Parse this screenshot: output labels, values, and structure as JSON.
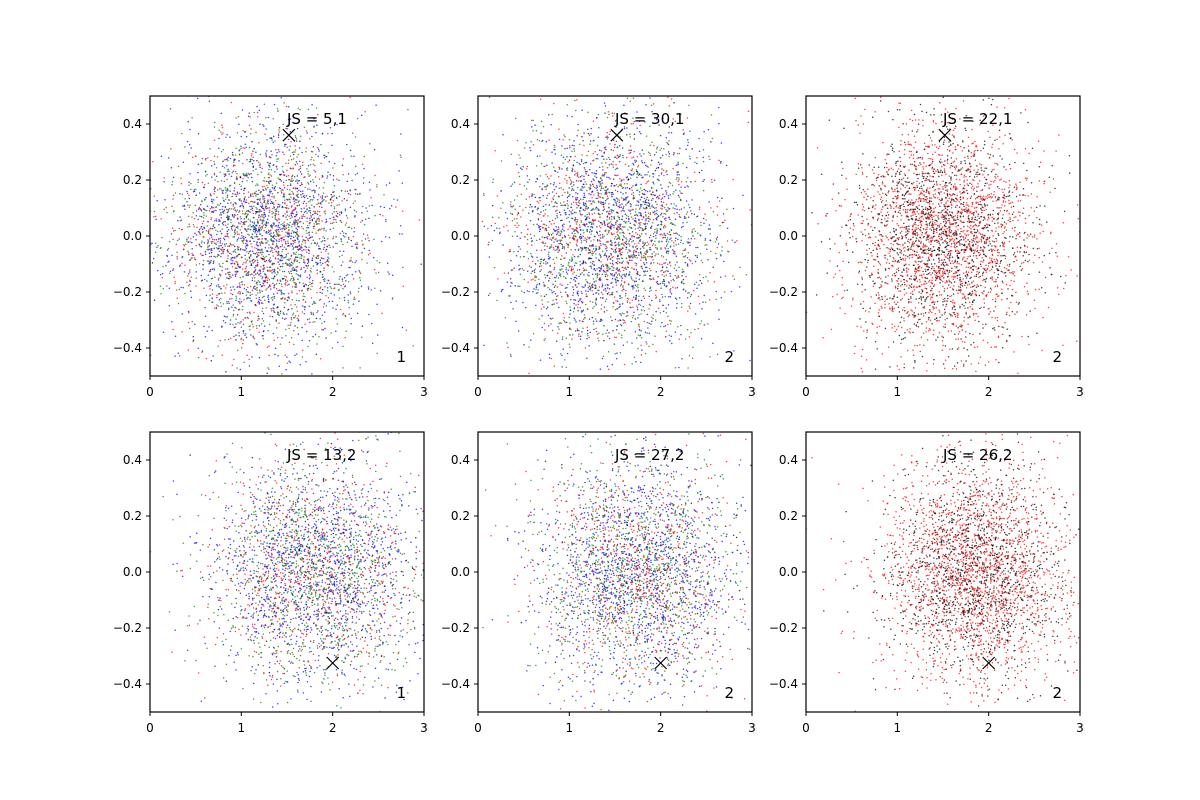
{
  "chart_data": [
    {
      "type": "scatter",
      "annotation": "JS = 5,1",
      "corner_label": "1",
      "marker": {
        "x": 1.52,
        "y": 0.36
      },
      "xlim": [
        0,
        3
      ],
      "ylim": [
        -0.5,
        0.5
      ],
      "xticks": [
        0,
        1,
        2,
        3
      ],
      "yticks": [
        -0.4,
        -0.2,
        0.0,
        0.2,
        0.4
      ],
      "cluster_center": {
        "x": 1.3,
        "y": 0.0
      },
      "cluster_spread": {
        "x": 0.55,
        "y": 0.2
      },
      "series": [
        {
          "color": "#0000ff",
          "count": 1300
        },
        {
          "color": "#008000",
          "count": 1000
        },
        {
          "color": "#ff0000",
          "count": 800
        },
        {
          "color": "#000000",
          "count": 150
        }
      ],
      "grid": false
    },
    {
      "type": "scatter",
      "annotation": "JS = 30,1",
      "corner_label": "2",
      "marker": {
        "x": 1.52,
        "y": 0.36
      },
      "xlim": [
        0,
        3
      ],
      "ylim": [
        -0.5,
        0.5
      ],
      "xticks": [
        0,
        1,
        2,
        3
      ],
      "yticks": [
        -0.4,
        -0.2,
        0.0,
        0.2,
        0.4
      ],
      "cluster_center": {
        "x": 1.45,
        "y": 0.0
      },
      "cluster_spread": {
        "x": 0.55,
        "y": 0.2
      },
      "series": [
        {
          "color": "#0000ff",
          "count": 1300
        },
        {
          "color": "#008000",
          "count": 1000
        },
        {
          "color": "#ff0000",
          "count": 800
        },
        {
          "color": "#000000",
          "count": 150
        }
      ],
      "grid": false
    },
    {
      "type": "scatter",
      "annotation": "JS = 22,1",
      "corner_label": "2",
      "marker": {
        "x": 1.52,
        "y": 0.36
      },
      "xlim": [
        0,
        3
      ],
      "ylim": [
        -0.5,
        0.5
      ],
      "xticks": [
        0,
        1,
        2,
        3
      ],
      "yticks": [
        -0.4,
        -0.2,
        0.0,
        0.2,
        0.4
      ],
      "cluster_center": {
        "x": 1.5,
        "y": 0.0
      },
      "cluster_spread": {
        "x": 0.5,
        "y": 0.2
      },
      "series": [
        {
          "color": "#ff0000",
          "count": 2000
        },
        {
          "color": "#000000",
          "count": 1300
        }
      ],
      "grid": false
    },
    {
      "type": "scatter",
      "annotation": "JS = 13,2",
      "corner_label": "1",
      "marker": {
        "x": 2.0,
        "y": -0.325
      },
      "xlim": [
        0,
        3
      ],
      "ylim": [
        -0.5,
        0.5
      ],
      "xticks": [
        0,
        1,
        2,
        3
      ],
      "yticks": [
        -0.4,
        -0.2,
        0.0,
        0.2,
        0.4
      ],
      "cluster_center": {
        "x": 1.8,
        "y": 0.0
      },
      "cluster_spread": {
        "x": 0.55,
        "y": 0.2
      },
      "series": [
        {
          "color": "#0000ff",
          "count": 1300
        },
        {
          "color": "#008000",
          "count": 1000
        },
        {
          "color": "#ff0000",
          "count": 800
        },
        {
          "color": "#000000",
          "count": 150
        }
      ],
      "grid": false
    },
    {
      "type": "scatter",
      "annotation": "JS = 27,2",
      "corner_label": "2",
      "marker": {
        "x": 2.0,
        "y": -0.325
      },
      "xlim": [
        0,
        3
      ],
      "ylim": [
        -0.5,
        0.5
      ],
      "xticks": [
        0,
        1,
        2,
        3
      ],
      "yticks": [
        -0.4,
        -0.2,
        0.0,
        0.2,
        0.4
      ],
      "cluster_center": {
        "x": 1.75,
        "y": 0.0
      },
      "cluster_spread": {
        "x": 0.55,
        "y": 0.2
      },
      "series": [
        {
          "color": "#0000ff",
          "count": 1300
        },
        {
          "color": "#008000",
          "count": 1000
        },
        {
          "color": "#ff0000",
          "count": 800
        },
        {
          "color": "#000000",
          "count": 150
        }
      ],
      "grid": false
    },
    {
      "type": "scatter",
      "annotation": "JS = 26,2",
      "corner_label": "2",
      "marker": {
        "x": 2.0,
        "y": -0.325
      },
      "xlim": [
        0,
        3
      ],
      "ylim": [
        -0.5,
        0.5
      ],
      "xticks": [
        0,
        1,
        2,
        3
      ],
      "yticks": [
        -0.4,
        -0.2,
        0.0,
        0.2,
        0.4
      ],
      "cluster_center": {
        "x": 1.85,
        "y": 0.0
      },
      "cluster_spread": {
        "x": 0.5,
        "y": 0.2
      },
      "series": [
        {
          "color": "#ff0000",
          "count": 2000
        },
        {
          "color": "#000000",
          "count": 1300
        }
      ],
      "grid": false
    }
  ]
}
